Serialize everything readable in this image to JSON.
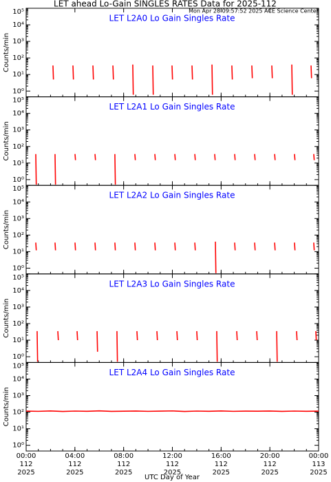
{
  "header": {
    "title": "LET ahead Lo-Gain SINGLES RATES Data for 2025-112",
    "subtitle": "Mon Apr 28 09:57:52 2025 ACE Science Center"
  },
  "x_axis": {
    "xlabel": "UTC Day of Year",
    "xlim": [
      0,
      24
    ],
    "xticks": [
      {
        "value": 0,
        "label": "00:00",
        "day": "112",
        "year": "2025"
      },
      {
        "value": 4,
        "label": "04:00",
        "day": "112",
        "year": "2025"
      },
      {
        "value": 8,
        "label": "08:00",
        "day": "112",
        "year": "2025"
      },
      {
        "value": 12,
        "label": "12:00",
        "day": "112",
        "year": "2025"
      },
      {
        "value": 16,
        "label": "16:00",
        "day": "112",
        "year": "2025"
      },
      {
        "value": 20,
        "label": "20:00",
        "day": "112",
        "year": "2025"
      },
      {
        "value": 24,
        "label": "00:00",
        "day": "113",
        "year": "2025"
      }
    ]
  },
  "chart_data": [
    {
      "type": "line",
      "title": "LET L2A0 Lo Gain Singles Rate",
      "ylabel": "Counts/min",
      "log_y": true,
      "color": "#ff0000",
      "ylim": [
        0.45,
        100000
      ],
      "yticks": [
        {
          "value": 1,
          "label": "10⁰"
        },
        {
          "value": 10,
          "label": "10¹"
        },
        {
          "value": 100,
          "label": "10²"
        },
        {
          "value": 1000,
          "label": "10³"
        },
        {
          "value": 10000,
          "label": "10⁴"
        },
        {
          "value": 100000,
          "label": "10⁵"
        }
      ],
      "x": [
        2.2,
        2.24,
        2.25,
        3.84,
        3.88,
        3.89,
        5.48,
        5.52,
        5.53,
        7.12,
        7.16,
        7.17,
        8.75,
        8.79,
        8.8,
        10.39,
        10.43,
        10.44,
        11.97,
        12.01,
        12.02,
        13.61,
        13.65,
        13.66,
        15.25,
        15.29,
        15.3,
        16.88,
        16.92,
        16.93,
        18.52,
        18.56,
        18.57,
        20.16,
        20.2,
        20.21,
        21.8,
        21.84,
        21.85,
        23.38,
        23.42,
        23.43
      ],
      "values": [
        35,
        5,
        null,
        35,
        5,
        null,
        35,
        5,
        null,
        35,
        5,
        null,
        40,
        0.6,
        null,
        35,
        0.6,
        null,
        35,
        5,
        null,
        35,
        5,
        null,
        40,
        0.6,
        null,
        35,
        5,
        null,
        35,
        6,
        null,
        35,
        6,
        null,
        40,
        0.6,
        null,
        35,
        6,
        null
      ]
    },
    {
      "type": "line",
      "title": "LET L2A1 Lo Gain Singles Rate",
      "ylabel": "Counts/min",
      "log_y": true,
      "color": "#ff0000",
      "ylim": [
        0.45,
        100000
      ],
      "yticks": [
        {
          "value": 1,
          "label": "10⁰"
        },
        {
          "value": 10,
          "label": "10¹"
        },
        {
          "value": 100,
          "label": "10²"
        },
        {
          "value": 1000,
          "label": "10³"
        },
        {
          "value": 10000,
          "label": "10⁴"
        },
        {
          "value": 100000,
          "label": "10⁵"
        }
      ],
      "x": [
        0.79,
        0.83,
        0.84,
        2.37,
        2.41,
        2.42,
        4.01,
        4.05,
        4.06,
        5.65,
        5.69,
        5.7,
        7.28,
        7.32,
        7.33,
        8.92,
        8.96,
        8.97,
        10.56,
        10.6,
        10.61,
        12.2,
        12.24,
        12.25,
        13.84,
        13.88,
        13.89,
        15.47,
        15.51,
        15.52,
        17.11,
        17.15,
        17.16,
        18.75,
        18.79,
        18.8,
        20.39,
        20.43,
        20.44,
        22.02,
        22.06,
        22.07,
        23.6,
        23.64,
        23.65
      ],
      "values": [
        35,
        0.5,
        null,
        35,
        0.5,
        null,
        35,
        15,
        null,
        35,
        15,
        null,
        35,
        0.5,
        null,
        35,
        15,
        null,
        35,
        15,
        null,
        35,
        15,
        null,
        35,
        15,
        null,
        35,
        15,
        null,
        35,
        15,
        null,
        35,
        15,
        null,
        35,
        15,
        null,
        35,
        15,
        null,
        35,
        15,
        null
      ]
    },
    {
      "type": "line",
      "title": "LET L2A2 Lo Gain Singles Rate",
      "ylabel": "Counts/min",
      "log_y": true,
      "color": "#ff0000",
      "ylim": [
        0.45,
        100000
      ],
      "yticks": [
        {
          "value": 1,
          "label": "10⁰"
        },
        {
          "value": 10,
          "label": "10¹"
        },
        {
          "value": 100,
          "label": "10²"
        },
        {
          "value": 1000,
          "label": "10³"
        },
        {
          "value": 10000,
          "label": "10⁴"
        },
        {
          "value": 100000,
          "label": "10⁵"
        }
      ],
      "x": [
        0.79,
        0.83,
        0.84,
        2.37,
        2.41,
        2.42,
        4.01,
        4.05,
        4.06,
        5.65,
        5.69,
        5.7,
        7.28,
        7.32,
        7.33,
        8.92,
        8.96,
        8.97,
        10.56,
        10.6,
        10.61,
        12.2,
        12.24,
        12.25,
        13.84,
        13.88,
        13.89,
        15.53,
        15.57,
        15.58,
        17.11,
        17.15,
        17.16,
        18.75,
        18.79,
        18.8,
        20.39,
        20.43,
        20.44,
        22.02,
        22.06,
        22.07,
        23.6,
        23.64,
        23.65
      ],
      "values": [
        35,
        12,
        null,
        35,
        12,
        null,
        35,
        12,
        null,
        35,
        12,
        null,
        35,
        12,
        null,
        35,
        12,
        null,
        35,
        12,
        null,
        35,
        12,
        null,
        35,
        12,
        null,
        40,
        0.5,
        null,
        35,
        12,
        null,
        35,
        12,
        null,
        35,
        12,
        null,
        35,
        12,
        null,
        35,
        12,
        null
      ]
    },
    {
      "type": "line",
      "title": "LET L2A3 Lo Gain Singles Rate",
      "ylabel": "Counts/min",
      "log_y": true,
      "color": "#ff0000",
      "ylim": [
        0.45,
        100000
      ],
      "yticks": [
        {
          "value": 1,
          "label": "10⁰"
        },
        {
          "value": 10,
          "label": "10¹"
        },
        {
          "value": 100,
          "label": "10²"
        },
        {
          "value": 1000,
          "label": "10³"
        },
        {
          "value": 10000,
          "label": "10⁴"
        },
        {
          "value": 100000,
          "label": "10⁵"
        }
      ],
      "x": [
        0.9,
        0.94,
        0.95,
        2.6,
        2.64,
        2.65,
        4.18,
        4.22,
        4.23,
        5.82,
        5.86,
        5.87,
        7.45,
        7.49,
        7.5,
        9.09,
        9.13,
        9.14,
        10.73,
        10.77,
        10.78,
        12.37,
        12.41,
        12.42,
        14.0,
        14.04,
        14.05,
        15.64,
        15.68,
        15.69,
        17.28,
        17.32,
        17.33,
        18.92,
        18.96,
        18.97,
        20.56,
        20.6,
        20.61,
        22.19,
        22.23,
        22.24,
        23.77,
        23.81,
        23.82
      ],
      "values": [
        35,
        0.5,
        null,
        35,
        10,
        null,
        35,
        10,
        null,
        35,
        2,
        null,
        35,
        0.5,
        null,
        35,
        10,
        null,
        35,
        10,
        null,
        35,
        10,
        null,
        35,
        10,
        null,
        35,
        0.5,
        null,
        35,
        10,
        null,
        35,
        10,
        null,
        35,
        0.5,
        null,
        35,
        10,
        null,
        35,
        10,
        null
      ]
    },
    {
      "type": "line",
      "title": "LET L2A4 Lo Gain Singles Rate",
      "ylabel": "Counts/min",
      "log_y": true,
      "color": "#ff0000",
      "ylim": [
        0.45,
        100000
      ],
      "yticks": [
        {
          "value": 1,
          "label": "10⁰"
        },
        {
          "value": 10,
          "label": "10¹"
        },
        {
          "value": 100,
          "label": "10²"
        },
        {
          "value": 1000,
          "label": "10³"
        },
        {
          "value": 10000,
          "label": "10⁴"
        },
        {
          "value": 100000,
          "label": "10⁵"
        }
      ],
      "x": [
        0,
        1,
        2,
        3,
        4,
        5,
        6,
        7,
        8,
        9,
        10,
        11,
        12,
        13,
        14,
        15,
        16,
        17,
        18,
        19,
        20,
        21,
        22,
        23,
        24
      ],
      "values": [
        115,
        112,
        118,
        110,
        116,
        113,
        120,
        111,
        114,
        117,
        112,
        115,
        119,
        110,
        116,
        113,
        118,
        112,
        115,
        114,
        117,
        111,
        116,
        113,
        115
      ]
    }
  ]
}
